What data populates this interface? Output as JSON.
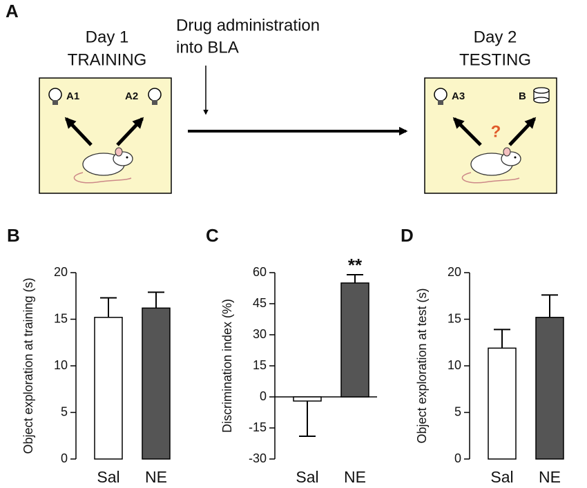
{
  "diagram": {
    "panel": "A",
    "day1": "Day 1",
    "training": "TRAINING",
    "drug_line1": "Drug administration",
    "drug_line2": "into BLA",
    "day2": "Day 2",
    "testing": "TESTING",
    "objects_training": [
      "A1",
      "A2"
    ],
    "objects_testing": [
      "A3",
      "B"
    ],
    "question": "?"
  },
  "chart_data": [
    {
      "type": "bar",
      "label": "B",
      "ylabel": "Object exploration at training (s)",
      "categories": [
        "Sal",
        "NE"
      ],
      "values": [
        15.2,
        16.2
      ],
      "errors": [
        2.1,
        1.7
      ],
      "colors": [
        "#ffffff",
        "#555555"
      ],
      "ylim": [
        0,
        20
      ],
      "yticks": [
        0,
        5,
        10,
        15,
        20
      ]
    },
    {
      "type": "bar",
      "label": "C",
      "ylabel": "Discrimination index (%)",
      "categories": [
        "Sal",
        "NE"
      ],
      "values": [
        -2,
        55
      ],
      "errors": [
        17,
        4
      ],
      "colors": [
        "#ffffff",
        "#555555"
      ],
      "ylim": [
        -30,
        60
      ],
      "yticks": [
        -30,
        -15,
        0,
        15,
        30,
        45,
        60
      ],
      "annotations": [
        "",
        "**"
      ]
    },
    {
      "type": "bar",
      "label": "D",
      "ylabel": "Object exploration at test (s)",
      "categories": [
        "Sal",
        "NE"
      ],
      "values": [
        11.9,
        15.2
      ],
      "errors": [
        2,
        2.4
      ],
      "colors": [
        "#ffffff",
        "#555555"
      ],
      "ylim": [
        0,
        20
      ],
      "yticks": [
        0,
        5,
        10,
        15,
        20
      ]
    }
  ]
}
